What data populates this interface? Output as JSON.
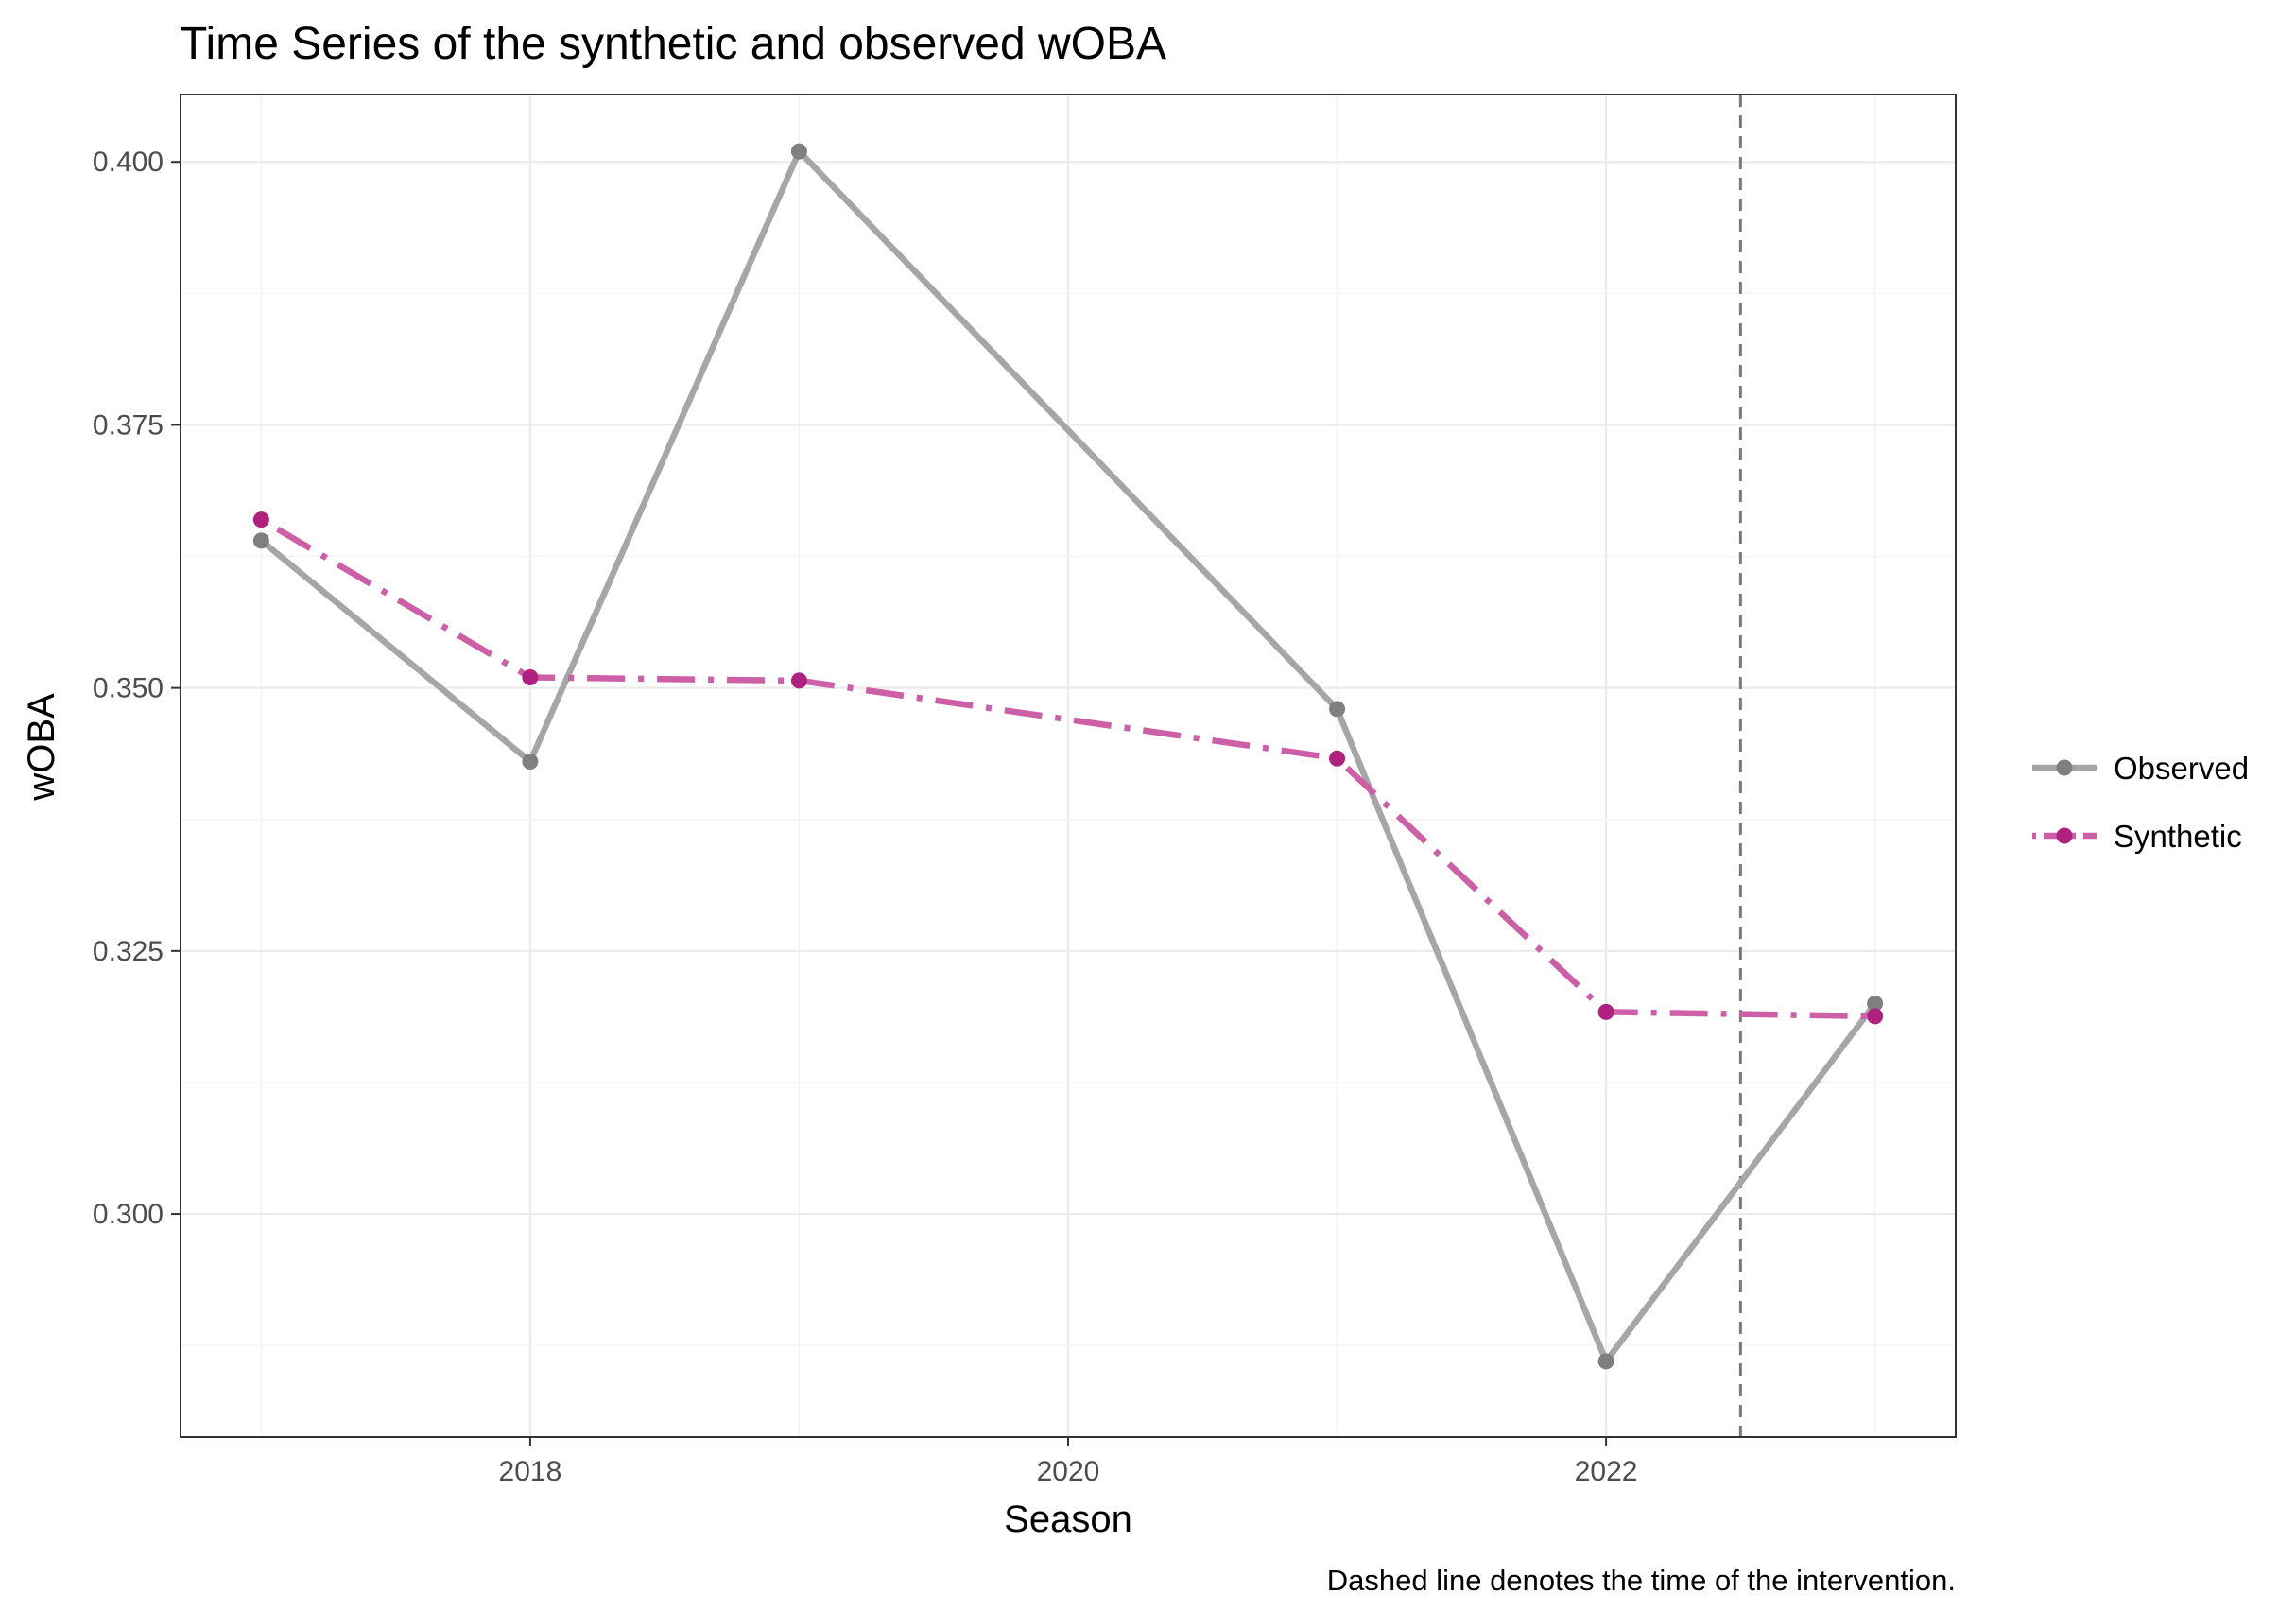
{
  "chart_data": {
    "type": "line",
    "title": "Time Series of the synthetic and observed wOBA",
    "xlabel": "Season",
    "ylabel": "wOBA",
    "caption": "Dashed line denotes the time of the intervention.",
    "x": [
      2017,
      2018,
      2019,
      2021,
      2022,
      2023
    ],
    "x_ticks": [
      2018,
      2020,
      2022
    ],
    "x_tick_labels": [
      "2018",
      "2020",
      "2022"
    ],
    "xlim": [
      2016.7,
      2023.3
    ],
    "y_ticks": [
      0.3,
      0.325,
      0.35,
      0.375,
      0.4
    ],
    "y_tick_labels": [
      "0.300",
      "0.325",
      "0.350",
      "0.375",
      "0.400"
    ],
    "ylim": [
      0.2788,
      0.4064
    ],
    "grid": true,
    "legend_position": "right",
    "intervention_x": 2022.5,
    "series": [
      {
        "name": "Observed",
        "color": "#a6a6a6",
        "point_color": "#7f7f7f",
        "line_style": "solid",
        "values": [
          0.364,
          0.343,
          0.401,
          0.348,
          0.286,
          0.32
        ]
      },
      {
        "name": "Synthetic",
        "color": "#cc5fa6",
        "point_color": "#b0207f",
        "line_style": "dotdash",
        "values": [
          0.366,
          0.351,
          0.3507,
          0.3433,
          0.3192,
          0.3188
        ]
      }
    ]
  }
}
